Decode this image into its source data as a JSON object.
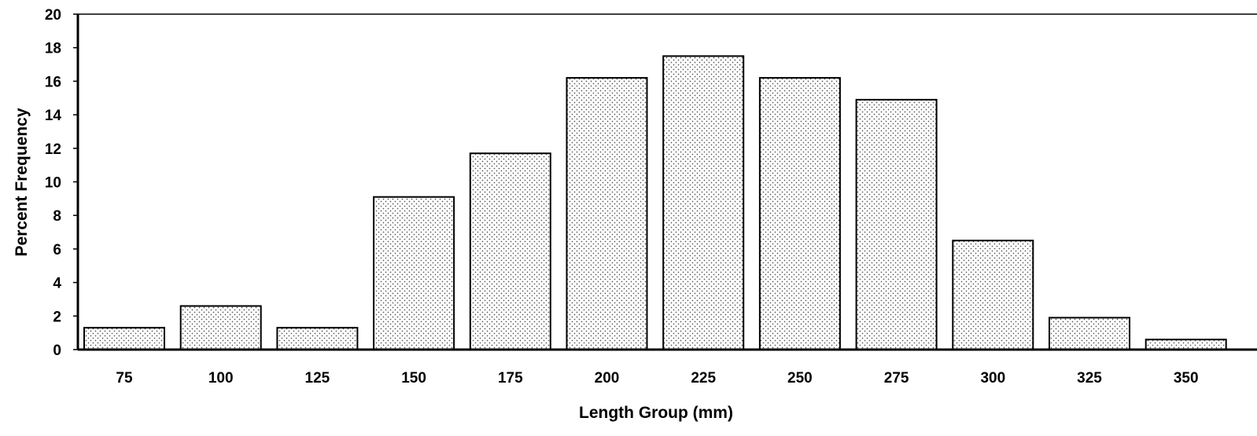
{
  "chart_data": {
    "type": "bar",
    "title": "",
    "xlabel": "Length Group (mm)",
    "ylabel": "Percent Frequency",
    "categories": [
      "75",
      "100",
      "125",
      "150",
      "175",
      "200",
      "225",
      "250",
      "275",
      "300",
      "325",
      "350"
    ],
    "values": [
      1.3,
      2.6,
      1.3,
      9.1,
      11.7,
      16.2,
      17.5,
      16.2,
      14.9,
      6.5,
      1.9,
      0.6
    ],
    "ylim": [
      0,
      20
    ],
    "yticks": [
      "0",
      "2",
      "4",
      "6",
      "8",
      "10",
      "12",
      "14",
      "16",
      "18",
      "20"
    ],
    "grid": false,
    "bar_fill": "#ffffff",
    "bar_pattern_dot_color": "#555555",
    "bar_stroke": "#000000"
  }
}
